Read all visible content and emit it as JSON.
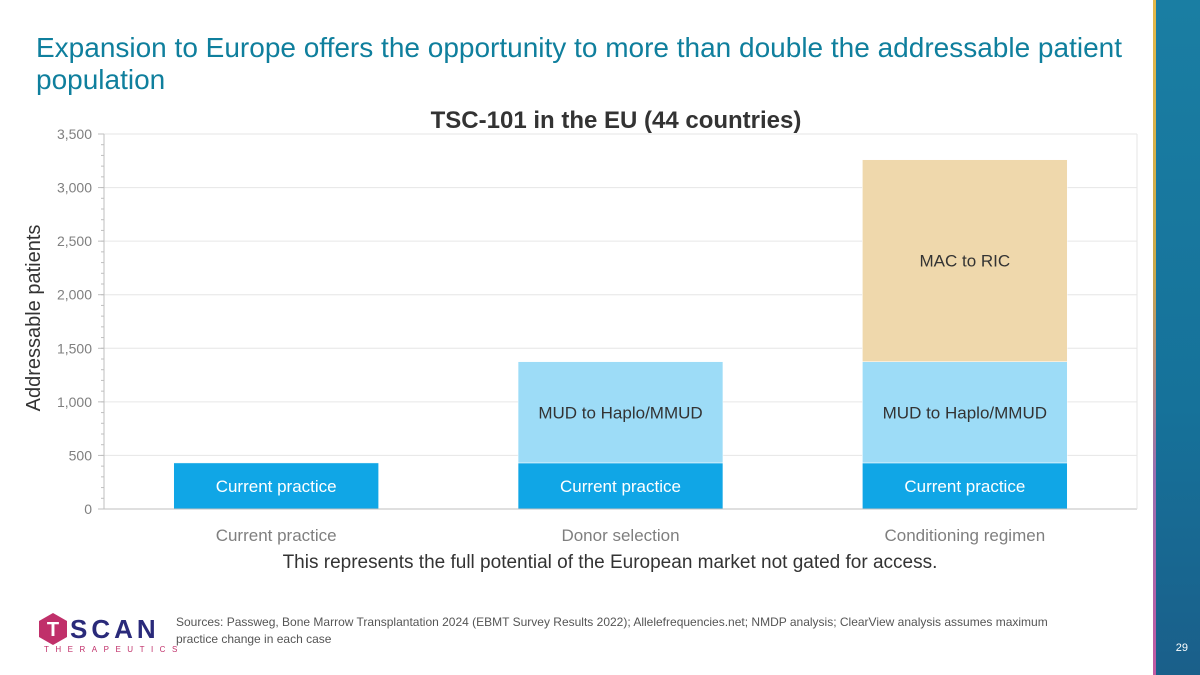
{
  "slide": {
    "title": "Expansion to Europe offers the opportunity to more than double the addressable patient population",
    "caption": "This represents the full potential of the European market not gated for access.",
    "sources": "Sources: Passweg, Bone Marrow Transplantation 2024 (EBMT Survey Results 2022); Allelefrequencies.net; NMDP analysis; ClearView analysis assumes maximum practice change in each case",
    "page_number": "29",
    "logo": {
      "word": "SCAN",
      "letter": "T",
      "subtitle": "THERAPEUTICS"
    }
  },
  "chart_data": {
    "type": "bar",
    "stacked": true,
    "title": "TSC-101 in the EU (44 countries)",
    "ylabel": "Addressable patients",
    "ylim": [
      0,
      3500
    ],
    "yticks": [
      0,
      500,
      1000,
      1500,
      2000,
      2500,
      3000,
      3500
    ],
    "ytick_labels": [
      "0",
      "500",
      "1,000",
      "1,500",
      "2,000",
      "2,500",
      "3,000",
      "3,500"
    ],
    "categories": [
      "Current practice",
      "Donor selection",
      "Conditioning regimen"
    ],
    "grid": true,
    "series": [
      {
        "name": "Current practice",
        "color": "#10a6e6",
        "label_color": "#ffffff",
        "values": [
          430,
          430,
          430
        ]
      },
      {
        "name": "MUD to Haplo/MMUD",
        "color": "#9ddcf7",
        "label_color": "#333333",
        "values": [
          0,
          945,
          945
        ]
      },
      {
        "name": "MAC to RIC",
        "color": "#efd8ac",
        "label_color": "#333333",
        "values": [
          0,
          0,
          1885
        ]
      }
    ]
  }
}
